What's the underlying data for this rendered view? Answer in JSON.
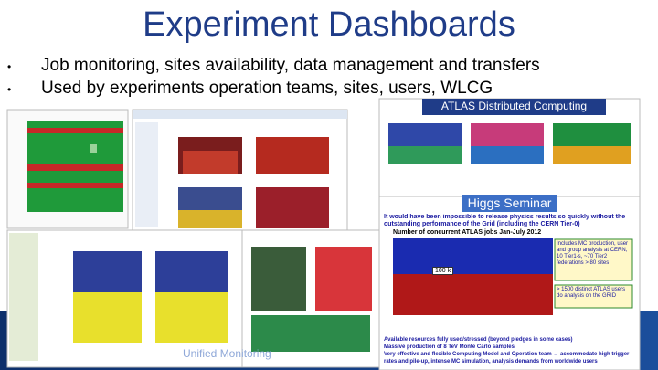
{
  "slide": {
    "title": "Experiment Dashboards",
    "bullets": [
      "Job monitoring, sites availability, data management and transfers",
      "Used by experiments operation teams, sites, users, WLCG"
    ],
    "atlas_label": "ATLAS Distributed Computing",
    "higgs_label": "Higgs Seminar",
    "higgs_header": "It would have been impossible to release physics results so quickly without the outstanding performance of the Grid (including the CERN Tier-0)",
    "higgs_chart_title": "Number of concurrent ATLAS jobs Jan-July 2012",
    "higgs_chart_mark": "100 k",
    "higgs_notes": [
      "Includes MC production, user and group analysis at CERN, 10 Tier1-s, ~70 Tier2 federations > 80 sites",
      "> 1500 distinct ATLAS users do analysis on the GRID"
    ],
    "higgs_bullets": [
      "Available resources fully used/stressed (beyond pledges in some cases)",
      "Massive production of 8 TeV Monte Carlo samples",
      "Very effective and flexible Computing Model and Operation team → accommodate high trigger rates and pile-up, intense MC simulation, analysis demands from worldwide users"
    ],
    "footer": "Unified Monitoring"
  }
}
